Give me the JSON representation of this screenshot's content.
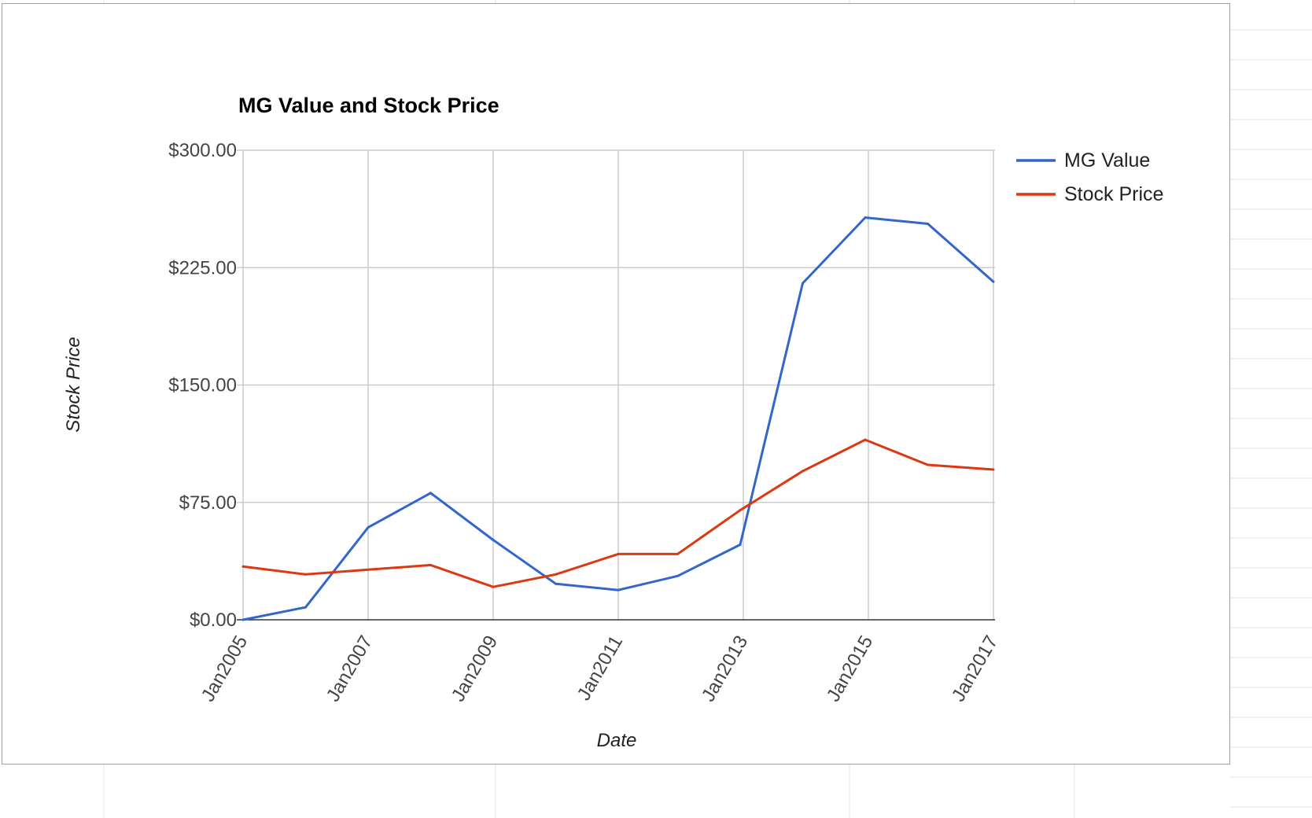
{
  "chart_data": {
    "type": "line",
    "title": "MG Value and Stock Price",
    "xlabel": "Date",
    "ylabel": "Stock Price",
    "x": [
      2005,
      2006,
      2007,
      2008,
      2009,
      2010,
      2011,
      2012,
      2013,
      2014,
      2015,
      2016,
      2017
    ],
    "x_ticks": [
      {
        "value": 2005,
        "label": "Jan2005"
      },
      {
        "value": 2007,
        "label": "Jan2007"
      },
      {
        "value": 2009,
        "label": "Jan2009"
      },
      {
        "value": 2011,
        "label": "Jan2011"
      },
      {
        "value": 2013,
        "label": "Jan2013"
      },
      {
        "value": 2015,
        "label": "Jan2015"
      },
      {
        "value": 2017,
        "label": "Jan2017"
      }
    ],
    "y_ticks": [
      {
        "value": 0,
        "label": "$0.00"
      },
      {
        "value": 75,
        "label": "$75.00"
      },
      {
        "value": 150,
        "label": "$150.00"
      },
      {
        "value": 225,
        "label": "$225.00"
      },
      {
        "value": 300,
        "label": "$300.00"
      }
    ],
    "xlim": [
      2005,
      2017
    ],
    "ylim": [
      0,
      300
    ],
    "grid": true,
    "legend_position": "right",
    "series": [
      {
        "name": "MG Value",
        "color": "#3366cc",
        "points": [
          [
            2005.0,
            0
          ],
          [
            2006.0,
            8
          ],
          [
            2007.0,
            59
          ],
          [
            2008.0,
            81
          ],
          [
            2009.0,
            51
          ],
          [
            2010.0,
            23
          ],
          [
            2011.0,
            19
          ],
          [
            2011.95,
            28
          ],
          [
            2012.95,
            48
          ],
          [
            2013.95,
            215
          ],
          [
            2014.95,
            257
          ],
          [
            2015.95,
            253
          ],
          [
            2017.0,
            216
          ]
        ]
      },
      {
        "name": "Stock Price",
        "color": "#dc3912",
        "points": [
          [
            2005.0,
            34
          ],
          [
            2006.0,
            29
          ],
          [
            2007.0,
            32
          ],
          [
            2008.0,
            35
          ],
          [
            2009.0,
            21
          ],
          [
            2010.0,
            29
          ],
          [
            2011.0,
            42
          ],
          [
            2011.95,
            42
          ],
          [
            2012.95,
            70
          ],
          [
            2013.95,
            95
          ],
          [
            2014.95,
            115
          ],
          [
            2015.95,
            99
          ],
          [
            2017.0,
            96
          ]
        ]
      }
    ]
  }
}
